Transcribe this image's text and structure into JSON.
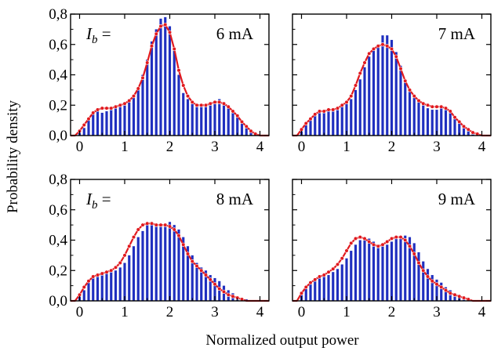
{
  "figure": {
    "ylabel": "Probability density",
    "xlabel": "Normalized output power",
    "colors": {
      "histogram": "#1f2fbf",
      "fit": "#e0191e",
      "axes": "#000000"
    }
  },
  "chart_data": [
    {
      "type": "bar",
      "label_prefix": "I_b =",
      "label_value": "6 mA",
      "xlim": [
        -0.2,
        4.2
      ],
      "ylim": [
        0,
        0.8
      ],
      "xticks": [
        "0",
        "1",
        "2",
        "3",
        "4"
      ],
      "yticks": [
        "0,0",
        "0,2",
        "0,4",
        "0,6",
        "0,8"
      ],
      "histogram": {
        "x": [
          -0.1,
          0.0,
          0.1,
          0.2,
          0.3,
          0.4,
          0.5,
          0.6,
          0.7,
          0.8,
          0.9,
          1.0,
          1.1,
          1.2,
          1.3,
          1.4,
          1.5,
          1.6,
          1.7,
          1.8,
          1.9,
          2.0,
          2.1,
          2.2,
          2.3,
          2.4,
          2.5,
          2.6,
          2.7,
          2.8,
          2.9,
          3.0,
          3.1,
          3.2,
          3.3,
          3.4,
          3.5,
          3.6,
          3.7,
          3.8,
          3.9,
          4.0
        ],
        "y": [
          0.0,
          0.02,
          0.05,
          0.1,
          0.14,
          0.16,
          0.15,
          0.16,
          0.17,
          0.18,
          0.19,
          0.2,
          0.22,
          0.26,
          0.32,
          0.4,
          0.5,
          0.62,
          0.7,
          0.77,
          0.78,
          0.72,
          0.58,
          0.4,
          0.28,
          0.24,
          0.21,
          0.2,
          0.19,
          0.2,
          0.21,
          0.23,
          0.24,
          0.22,
          0.2,
          0.17,
          0.13,
          0.09,
          0.06,
          0.03,
          0.01,
          0.0
        ]
      },
      "fit": {
        "x": [
          -0.2,
          -0.1,
          0.0,
          0.1,
          0.2,
          0.3,
          0.4,
          0.5,
          0.6,
          0.7,
          0.8,
          0.9,
          1.0,
          1.1,
          1.2,
          1.3,
          1.4,
          1.5,
          1.6,
          1.7,
          1.8,
          1.9,
          2.0,
          2.1,
          2.2,
          2.3,
          2.4,
          2.5,
          2.6,
          2.7,
          2.8,
          2.9,
          3.0,
          3.1,
          3.2,
          3.3,
          3.4,
          3.5,
          3.6,
          3.7,
          3.8,
          3.9,
          4.0,
          4.1,
          4.2
        ],
        "y": [
          0.0,
          0.0,
          0.03,
          0.07,
          0.11,
          0.15,
          0.17,
          0.18,
          0.18,
          0.18,
          0.19,
          0.2,
          0.21,
          0.23,
          0.26,
          0.31,
          0.38,
          0.48,
          0.59,
          0.67,
          0.72,
          0.73,
          0.68,
          0.57,
          0.43,
          0.33,
          0.26,
          0.22,
          0.2,
          0.2,
          0.2,
          0.21,
          0.22,
          0.22,
          0.21,
          0.19,
          0.16,
          0.13,
          0.09,
          0.06,
          0.03,
          0.01,
          0.0,
          0.0,
          0.0
        ]
      }
    },
    {
      "type": "bar",
      "label_prefix": "",
      "label_value": "7 mA",
      "xlim": [
        -0.2,
        4.2
      ],
      "ylim": [
        0,
        0.8
      ],
      "xticks": [
        "0",
        "1",
        "2",
        "3",
        "4"
      ],
      "yticks": [
        "0,0",
        "0,2",
        "0,4",
        "0,6",
        "0,8"
      ],
      "histogram": {
        "x": [
          -0.1,
          0.0,
          0.1,
          0.2,
          0.3,
          0.4,
          0.5,
          0.6,
          0.7,
          0.8,
          0.9,
          1.0,
          1.1,
          1.2,
          1.3,
          1.4,
          1.5,
          1.6,
          1.7,
          1.8,
          1.9,
          2.0,
          2.1,
          2.2,
          2.3,
          2.4,
          2.5,
          2.6,
          2.7,
          2.8,
          2.9,
          3.0,
          3.1,
          3.2,
          3.3,
          3.4,
          3.5,
          3.6,
          3.7,
          3.8,
          3.9,
          4.0
        ],
        "y": [
          0.0,
          0.03,
          0.07,
          0.11,
          0.14,
          0.15,
          0.15,
          0.16,
          0.16,
          0.18,
          0.19,
          0.21,
          0.24,
          0.3,
          0.37,
          0.45,
          0.52,
          0.57,
          0.6,
          0.66,
          0.66,
          0.63,
          0.55,
          0.46,
          0.36,
          0.3,
          0.25,
          0.22,
          0.2,
          0.18,
          0.17,
          0.17,
          0.18,
          0.17,
          0.15,
          0.12,
          0.09,
          0.06,
          0.04,
          0.02,
          0.01,
          0.0
        ]
      },
      "fit": {
        "x": [
          -0.2,
          -0.1,
          0.0,
          0.1,
          0.2,
          0.3,
          0.4,
          0.5,
          0.6,
          0.7,
          0.8,
          0.9,
          1.0,
          1.1,
          1.2,
          1.3,
          1.4,
          1.5,
          1.6,
          1.7,
          1.8,
          1.9,
          2.0,
          2.1,
          2.2,
          2.3,
          2.4,
          2.5,
          2.6,
          2.7,
          2.8,
          2.9,
          3.0,
          3.1,
          3.2,
          3.3,
          3.4,
          3.5,
          3.6,
          3.7,
          3.8,
          3.9,
          4.0,
          4.1,
          4.2
        ],
        "y": [
          0.0,
          0.0,
          0.04,
          0.08,
          0.11,
          0.14,
          0.16,
          0.16,
          0.17,
          0.17,
          0.18,
          0.2,
          0.22,
          0.26,
          0.33,
          0.41,
          0.48,
          0.54,
          0.57,
          0.59,
          0.6,
          0.59,
          0.57,
          0.52,
          0.44,
          0.36,
          0.3,
          0.26,
          0.23,
          0.21,
          0.2,
          0.19,
          0.19,
          0.19,
          0.18,
          0.16,
          0.12,
          0.09,
          0.06,
          0.04,
          0.02,
          0.01,
          0.0,
          0.0,
          0.0
        ]
      }
    },
    {
      "type": "bar",
      "label_prefix": "I_b =",
      "label_value": "8 mA",
      "xlim": [
        -0.2,
        4.2
      ],
      "ylim": [
        0,
        0.8
      ],
      "xticks": [
        "0",
        "1",
        "2",
        "3",
        "4"
      ],
      "yticks": [
        "0,0",
        "0,2",
        "0,4",
        "0,6",
        "0,8"
      ],
      "histogram": {
        "x": [
          -0.1,
          0.0,
          0.1,
          0.2,
          0.3,
          0.4,
          0.5,
          0.6,
          0.7,
          0.8,
          0.9,
          1.0,
          1.1,
          1.2,
          1.3,
          1.4,
          1.5,
          1.6,
          1.7,
          1.8,
          1.9,
          2.0,
          2.1,
          2.2,
          2.3,
          2.4,
          2.5,
          2.6,
          2.7,
          2.8,
          2.9,
          3.0,
          3.1,
          3.2,
          3.3,
          3.4,
          3.5,
          3.6,
          3.7,
          3.8,
          3.9,
          4.0
        ],
        "y": [
          0.0,
          0.03,
          0.07,
          0.12,
          0.15,
          0.16,
          0.17,
          0.18,
          0.19,
          0.2,
          0.22,
          0.25,
          0.3,
          0.36,
          0.42,
          0.46,
          0.5,
          0.52,
          0.51,
          0.5,
          0.51,
          0.52,
          0.5,
          0.47,
          0.42,
          0.36,
          0.3,
          0.25,
          0.22,
          0.2,
          0.17,
          0.15,
          0.13,
          0.1,
          0.07,
          0.05,
          0.03,
          0.02,
          0.01,
          0.0,
          0.0,
          0.0
        ]
      },
      "fit": {
        "x": [
          -0.2,
          -0.1,
          0.0,
          0.1,
          0.2,
          0.3,
          0.4,
          0.5,
          0.6,
          0.7,
          0.8,
          0.9,
          1.0,
          1.1,
          1.2,
          1.3,
          1.4,
          1.5,
          1.6,
          1.7,
          1.8,
          1.9,
          2.0,
          2.1,
          2.2,
          2.3,
          2.4,
          2.5,
          2.6,
          2.7,
          2.8,
          2.9,
          3.0,
          3.1,
          3.2,
          3.3,
          3.4,
          3.5,
          3.6,
          3.7,
          3.8,
          3.9,
          4.0,
          4.1,
          4.2
        ],
        "y": [
          0.0,
          0.0,
          0.04,
          0.09,
          0.13,
          0.16,
          0.17,
          0.18,
          0.19,
          0.2,
          0.22,
          0.25,
          0.3,
          0.36,
          0.42,
          0.47,
          0.5,
          0.51,
          0.51,
          0.5,
          0.5,
          0.5,
          0.49,
          0.47,
          0.43,
          0.37,
          0.31,
          0.26,
          0.23,
          0.2,
          0.17,
          0.14,
          0.11,
          0.08,
          0.06,
          0.04,
          0.03,
          0.02,
          0.01,
          0.0,
          0.0,
          0.0,
          0.0,
          0.0,
          0.0
        ]
      }
    },
    {
      "type": "bar",
      "label_prefix": "",
      "label_value": "9 mA",
      "xlim": [
        -0.2,
        4.2
      ],
      "ylim": [
        0,
        0.8
      ],
      "xticks": [
        "0",
        "1",
        "2",
        "3",
        "4"
      ],
      "yticks": [
        "0,0",
        "0,2",
        "0,4",
        "0,6",
        "0,8"
      ],
      "histogram": {
        "x": [
          -0.1,
          0.0,
          0.1,
          0.2,
          0.3,
          0.4,
          0.5,
          0.6,
          0.7,
          0.8,
          0.9,
          1.0,
          1.1,
          1.2,
          1.3,
          1.4,
          1.5,
          1.6,
          1.7,
          1.8,
          1.9,
          2.0,
          2.1,
          2.2,
          2.3,
          2.4,
          2.5,
          2.6,
          2.7,
          2.8,
          2.9,
          3.0,
          3.1,
          3.2,
          3.3,
          3.4,
          3.5,
          3.6,
          3.7,
          3.8,
          3.9,
          4.0
        ],
        "y": [
          0.0,
          0.04,
          0.08,
          0.11,
          0.14,
          0.15,
          0.16,
          0.17,
          0.19,
          0.21,
          0.24,
          0.28,
          0.33,
          0.37,
          0.4,
          0.42,
          0.41,
          0.39,
          0.37,
          0.36,
          0.37,
          0.39,
          0.41,
          0.42,
          0.43,
          0.42,
          0.38,
          0.32,
          0.26,
          0.21,
          0.17,
          0.14,
          0.12,
          0.09,
          0.07,
          0.05,
          0.03,
          0.02,
          0.01,
          0.0,
          0.0,
          0.0
        ]
      },
      "fit": {
        "x": [
          -0.2,
          -0.1,
          0.0,
          0.1,
          0.2,
          0.3,
          0.4,
          0.5,
          0.6,
          0.7,
          0.8,
          0.9,
          1.0,
          1.1,
          1.2,
          1.3,
          1.4,
          1.5,
          1.6,
          1.7,
          1.8,
          1.9,
          2.0,
          2.1,
          2.2,
          2.3,
          2.4,
          2.5,
          2.6,
          2.7,
          2.8,
          2.9,
          3.0,
          3.1,
          3.2,
          3.3,
          3.4,
          3.5,
          3.6,
          3.7,
          3.8,
          3.9,
          4.0,
          4.1,
          4.2
        ],
        "y": [
          0.0,
          0.0,
          0.05,
          0.09,
          0.12,
          0.14,
          0.16,
          0.17,
          0.19,
          0.21,
          0.24,
          0.28,
          0.33,
          0.38,
          0.41,
          0.42,
          0.41,
          0.39,
          0.37,
          0.36,
          0.37,
          0.39,
          0.41,
          0.42,
          0.42,
          0.4,
          0.36,
          0.31,
          0.25,
          0.2,
          0.16,
          0.13,
          0.11,
          0.09,
          0.07,
          0.05,
          0.04,
          0.03,
          0.02,
          0.01,
          0.0,
          0.0,
          0.0,
          0.0,
          0.0
        ]
      }
    }
  ]
}
